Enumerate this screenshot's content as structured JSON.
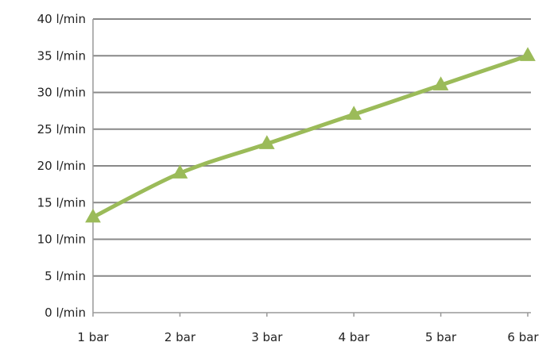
{
  "chart_data": {
    "type": "line",
    "title": "",
    "xlabel": "",
    "ylabel": "",
    "categories": [
      "1 bar",
      "2 bar",
      "3 bar",
      "4 bar",
      "5 bar",
      "6 bar"
    ],
    "y_tick_labels": [
      "0 l/min",
      "5 l/min",
      "10 l/min",
      "15 l/min",
      "20 l/min",
      "25 l/min",
      "30 l/min",
      "35 l/min",
      "40 l/min"
    ],
    "ylim": [
      0,
      40
    ],
    "y_step": 5,
    "grid": true,
    "legend": "none",
    "series": [
      {
        "values": [
          13,
          19,
          23,
          27,
          31,
          35
        ],
        "color": "#9bbb59",
        "marker": "triangle"
      }
    ],
    "colors": {
      "gridline": "#888888",
      "axis": "#999999",
      "series": "#9bbb59"
    }
  }
}
